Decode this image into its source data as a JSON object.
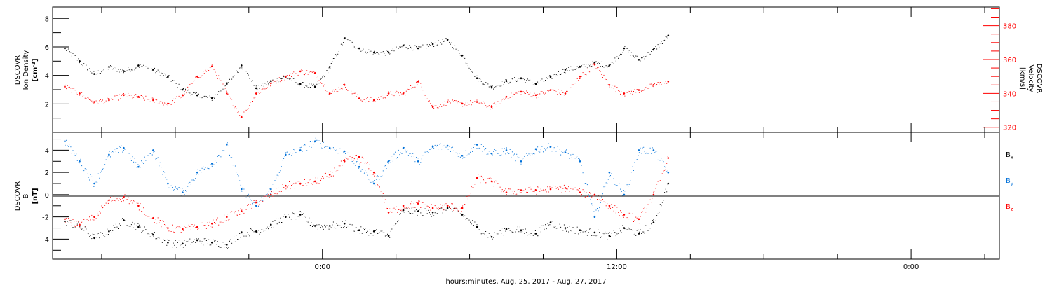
{
  "chart_data": [
    {
      "type": "scatter",
      "panel": "top",
      "ylabel": {
        "line1": "DSCOVR",
        "line2": "Ion Density",
        "unit": "[cm",
        "unit_exp": "-3",
        "unit_end": "]"
      },
      "y2label": {
        "line1": "DSCOVR",
        "line2": "Velocity",
        "unit": "[km/s]"
      },
      "ylim": [
        0,
        8.8
      ],
      "yticks": [
        2,
        4,
        6,
        8
      ],
      "y2lim": [
        317,
        391
      ],
      "y2ticks": [
        320,
        340,
        360,
        380
      ],
      "series": [
        {
          "color": "#000000",
          "axis": "left",
          "x": [
            -10.5,
            -9.9,
            -9.3,
            -8.7,
            -8.1,
            -7.5,
            -6.9,
            -6.3,
            -5.7,
            -5.1,
            -4.5,
            -3.9,
            -3.3,
            -2.7,
            -2.1,
            -1.5,
            -0.9,
            -0.3,
            0.3,
            0.9,
            1.5,
            2.1,
            2.7,
            3.3,
            3.9,
            4.5,
            5.1,
            5.7,
            6.3,
            6.9,
            7.5,
            8.1,
            8.7,
            9.3,
            9.9,
            10.5,
            11.1,
            11.7,
            12.3,
            12.9,
            13.5,
            14.1
          ],
          "y": [
            5.9,
            5.0,
            4.1,
            4.6,
            4.3,
            4.7,
            4.4,
            3.9,
            3.0,
            2.6,
            2.4,
            3.4,
            4.7,
            3.1,
            3.6,
            3.9,
            3.4,
            3.2,
            4.6,
            6.6,
            5.9,
            5.6,
            5.6,
            6.1,
            5.9,
            6.2,
            6.5,
            5.4,
            3.8,
            3.2,
            3.6,
            3.8,
            3.4,
            3.9,
            4.4,
            4.6,
            4.9,
            4.7,
            5.9,
            5.1,
            5.8,
            6.8
          ]
        },
        {
          "color": "#ff0000",
          "axis": "right",
          "x": [
            -10.5,
            -9.9,
            -9.3,
            -8.7,
            -8.1,
            -7.5,
            -6.9,
            -6.3,
            -5.7,
            -5.1,
            -4.5,
            -3.9,
            -3.3,
            -2.7,
            -2.1,
            -1.5,
            -0.9,
            -0.3,
            0.3,
            0.9,
            1.5,
            2.1,
            2.7,
            3.3,
            3.9,
            4.5,
            5.1,
            5.7,
            6.3,
            6.9,
            7.5,
            8.1,
            8.7,
            9.3,
            9.9,
            10.5,
            11.1,
            11.7,
            12.3,
            12.9,
            13.5,
            14.1
          ],
          "y": [
            344,
            340,
            335,
            336,
            339,
            338,
            336,
            334,
            339,
            350,
            356,
            340,
            326,
            340,
            346,
            350,
            353,
            352,
            340,
            345,
            337,
            336,
            340,
            340,
            347,
            332,
            335,
            334,
            335,
            332,
            338,
            341,
            339,
            342,
            340,
            350,
            357,
            345,
            340,
            342,
            345,
            347
          ]
        }
      ]
    },
    {
      "type": "scatter",
      "panel": "bottom",
      "ylabel": {
        "line1": "DSCOVR",
        "line2": "B",
        "unit": "[nT]"
      },
      "ylim": [
        -5.8,
        5.6
      ],
      "yticks": [
        -4,
        -2,
        0,
        2,
        4
      ],
      "legend": [
        {
          "label": "B",
          "sub": "x",
          "color": "#000000"
        },
        {
          "label": "B",
          "sub": "y",
          "color": "#0070d8"
        },
        {
          "label": "B",
          "sub": "z",
          "color": "#ff0000"
        }
      ],
      "series": [
        {
          "name": "Bx",
          "color": "#000000",
          "x": [
            -10.5,
            -9.9,
            -9.3,
            -8.7,
            -8.1,
            -7.5,
            -6.9,
            -6.3,
            -5.7,
            -5.1,
            -4.5,
            -3.9,
            -3.3,
            -2.7,
            -2.1,
            -1.5,
            -0.9,
            -0.3,
            0.3,
            0.9,
            1.5,
            2.1,
            2.7,
            3.3,
            3.9,
            4.5,
            5.1,
            5.7,
            6.3,
            6.9,
            7.5,
            8.1,
            8.7,
            9.3,
            9.9,
            10.5,
            11.1,
            11.7,
            12.3,
            12.9,
            13.5,
            14.1
          ],
          "y": [
            -2.4,
            -2.8,
            -3.9,
            -3.3,
            -2.3,
            -2.9,
            -3.6,
            -4.3,
            -4.4,
            -4.1,
            -4.3,
            -4.5,
            -3.4,
            -3.3,
            -2.7,
            -2.0,
            -1.8,
            -2.8,
            -2.8,
            -2.6,
            -3.2,
            -3.3,
            -3.7,
            -1.4,
            -1.5,
            -1.6,
            -1.2,
            -1.8,
            -2.9,
            -3.8,
            -3.1,
            -3.2,
            -3.5,
            -2.5,
            -3.0,
            -3.2,
            -3.4,
            -3.7,
            -3.0,
            -3.5,
            -2.5,
            1.0
          ]
        },
        {
          "name": "By",
          "color": "#0070d8",
          "x": [
            -10.5,
            -9.9,
            -9.3,
            -8.7,
            -8.1,
            -7.5,
            -6.9,
            -6.3,
            -5.7,
            -5.1,
            -4.5,
            -3.9,
            -3.3,
            -2.7,
            -2.1,
            -1.5,
            -0.9,
            -0.3,
            0.3,
            0.9,
            1.5,
            2.1,
            2.7,
            3.3,
            3.9,
            4.5,
            5.1,
            5.7,
            6.3,
            6.9,
            7.5,
            8.1,
            8.7,
            9.3,
            9.9,
            10.5,
            11.1,
            11.7,
            12.3,
            12.9,
            13.5,
            14.1
          ],
          "y": [
            4.8,
            3.0,
            1.0,
            3.6,
            4.2,
            2.5,
            4.0,
            1.0,
            0.2,
            2.0,
            2.8,
            4.5,
            0.5,
            -1.0,
            0.5,
            3.6,
            4.0,
            4.8,
            4.2,
            3.9,
            2.5,
            1.0,
            3.0,
            4.2,
            3.0,
            4.3,
            4.4,
            3.5,
            4.5,
            3.7,
            4.0,
            3.0,
            4.1,
            4.3,
            3.8,
            3.0,
            -2.0,
            2.0,
            0.0,
            4.0,
            4.0,
            2.0
          ]
        },
        {
          "name": "Bz",
          "color": "#ff0000",
          "x": [
            -10.5,
            -9.9,
            -9.3,
            -8.7,
            -8.1,
            -7.5,
            -6.9,
            -6.3,
            -5.7,
            -5.1,
            -4.5,
            -3.9,
            -3.3,
            -2.7,
            -2.1,
            -1.5,
            -0.9,
            -0.3,
            0.3,
            0.9,
            1.5,
            2.1,
            2.7,
            3.3,
            3.9,
            4.5,
            5.1,
            5.7,
            6.3,
            6.9,
            7.5,
            8.1,
            8.7,
            9.3,
            9.9,
            10.5,
            11.1,
            11.7,
            12.3,
            12.9,
            13.5,
            14.1
          ],
          "y": [
            -2.2,
            -2.7,
            -2.0,
            -0.5,
            -0.2,
            -1.0,
            -2.1,
            -3.0,
            -3.1,
            -2.9,
            -2.6,
            -2.0,
            -1.5,
            -0.7,
            0.0,
            0.8,
            1.0,
            1.2,
            1.8,
            3.0,
            3.4,
            2.0,
            -1.6,
            -1.0,
            -0.8,
            -1.2,
            -1.0,
            -1.2,
            1.5,
            1.2,
            0.2,
            0.4,
            0.4,
            0.5,
            0.6,
            0.2,
            0.0,
            -1.0,
            -1.8,
            -2.2,
            0.0,
            3.3
          ]
        }
      ]
    }
  ],
  "xaxis": {
    "tick_labels": [
      "0:00",
      "12:00",
      "0:00"
    ],
    "tick_hours": [
      0,
      12,
      24
    ],
    "xlim": [
      -11.0,
      27.6
    ],
    "label": "hours:minutes, Aug. 25, 2017 - Aug. 27, 2017"
  }
}
